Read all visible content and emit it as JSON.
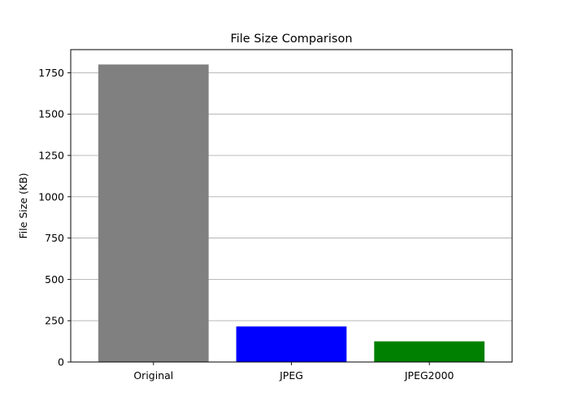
{
  "chart_data": {
    "type": "bar",
    "title": "File Size Comparison",
    "xlabel": "",
    "ylabel": "File Size (KB)",
    "categories": [
      "Original",
      "JPEG",
      "JPEG2000"
    ],
    "values": [
      1800,
      215,
      125
    ],
    "colors": [
      "#808080",
      "#0000ff",
      "#008000"
    ],
    "ylim": [
      0,
      1890
    ],
    "yticks": [
      0,
      250,
      500,
      750,
      1000,
      1250,
      1500,
      1750
    ],
    "grid": "y",
    "grid_color": "#b0b0b0",
    "legend": "none"
  }
}
